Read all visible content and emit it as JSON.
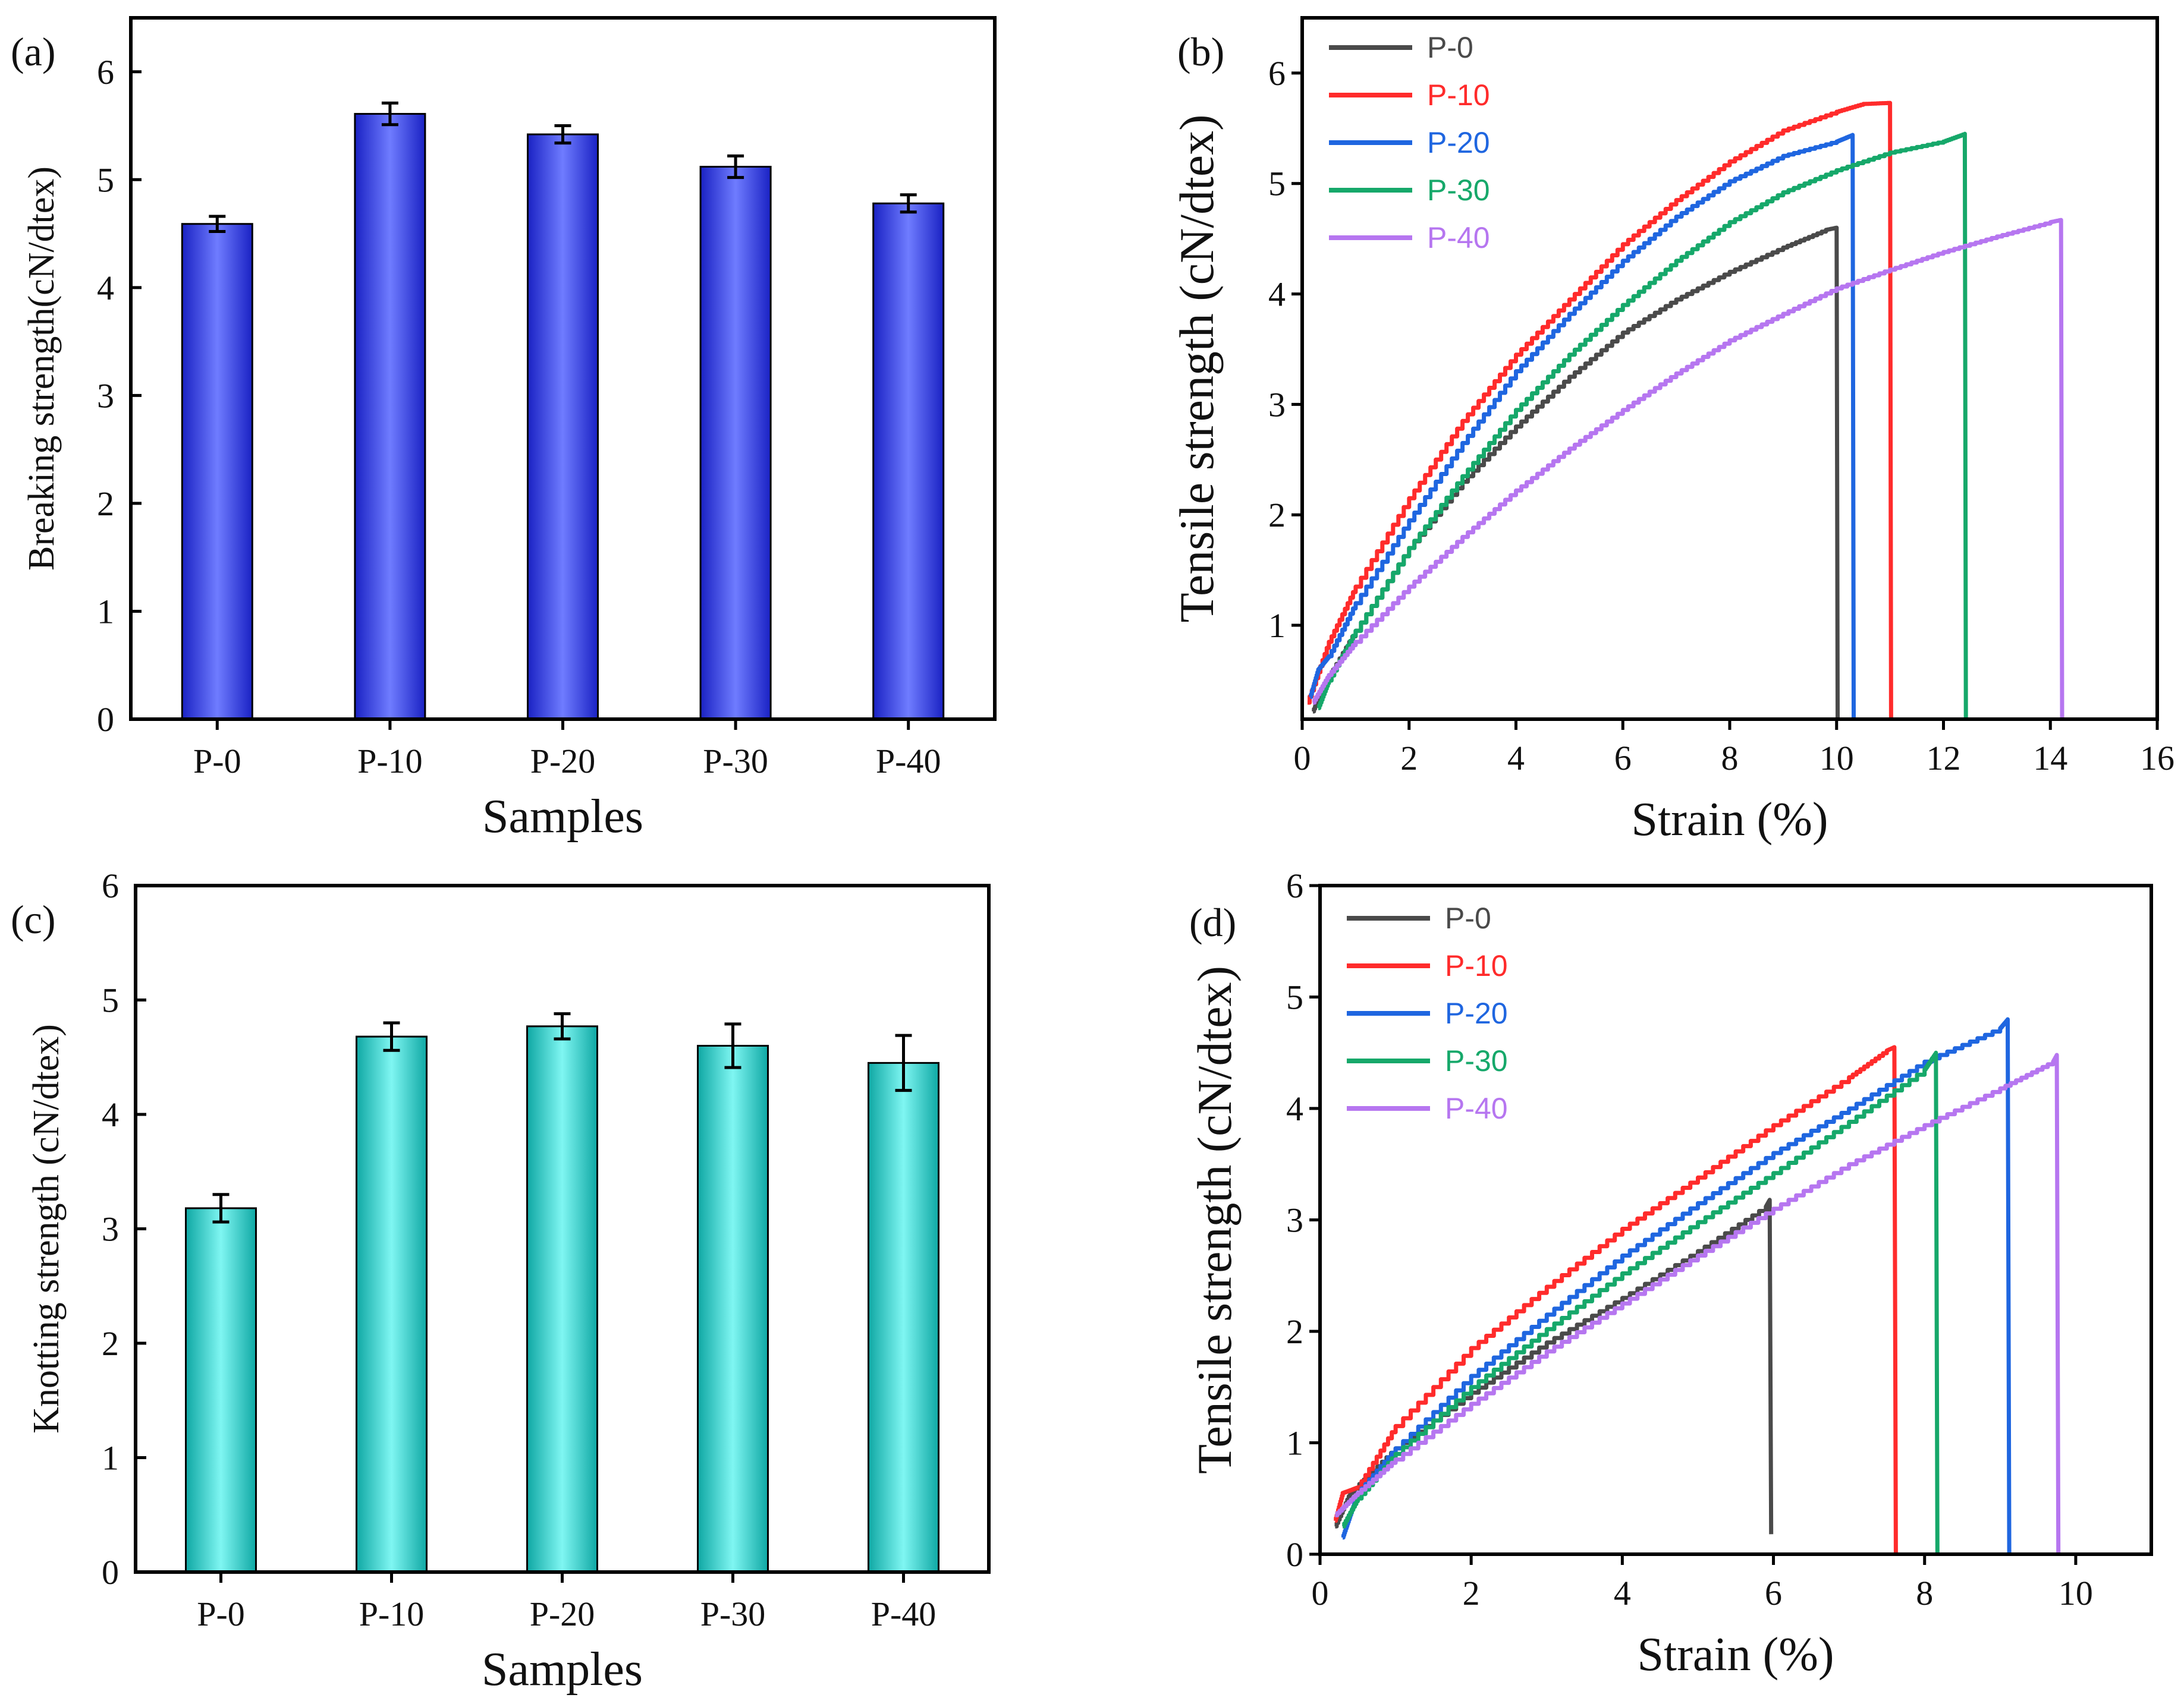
{
  "figure_title": "",
  "colors": {
    "bar_a": "#3f48ff",
    "bar_c": "#19e3df",
    "P-0": "#4a4a4a",
    "P-10": "#ff2b2b",
    "P-20": "#1f66e0",
    "P-30": "#16a86a",
    "P-40": "#b676f0"
  },
  "chart_data": [
    {
      "id": "a",
      "type": "bar",
      "panel_label": "(a)",
      "title": "",
      "xlabel": "Samples",
      "ylabel": "Breaking strength(cN/dtex)",
      "categories": [
        "P-0",
        "P-10",
        "P-20",
        "P-30",
        "P-40"
      ],
      "values": [
        4.59,
        5.61,
        5.42,
        5.12,
        4.78
      ],
      "errors": [
        0.07,
        0.1,
        0.08,
        0.1,
        0.08
      ],
      "ylim": [
        0,
        6.5
      ],
      "yticks": [
        0,
        1,
        2,
        3,
        4,
        5,
        6
      ],
      "grid": false
    },
    {
      "id": "b",
      "type": "line",
      "panel_label": "(b)",
      "title": "",
      "xlabel": "Strain (%)",
      "ylabel": "Tensile strength (cN/dtex)",
      "xlim": [
        0,
        16
      ],
      "ylim": [
        0.15,
        6.5
      ],
      "xticks": [
        0,
        2,
        4,
        6,
        8,
        10,
        12,
        14,
        16
      ],
      "yticks": [
        1,
        2,
        3,
        4,
        5,
        6
      ],
      "legend_position": "top-left",
      "grid": false,
      "series": [
        {
          "name": "P-0",
          "x": [
            0.2,
            0.4,
            1,
            2,
            3,
            4,
            5,
            6,
            7,
            8,
            9,
            9.8,
            10.0,
            10.02
          ],
          "y": [
            0.22,
            0.45,
            0.95,
            1.7,
            2.3,
            2.8,
            3.25,
            3.65,
            3.95,
            4.2,
            4.42,
            4.58,
            4.6,
            0.15
          ]
        },
        {
          "name": "P-10",
          "x": [
            0.1,
            0.5,
            1,
            2,
            3,
            4,
            5,
            6,
            7,
            8,
            9,
            10,
            10.5,
            11.0,
            11.02
          ],
          "y": [
            0.3,
            0.85,
            1.35,
            2.15,
            2.85,
            3.45,
            3.95,
            4.45,
            4.85,
            5.2,
            5.48,
            5.65,
            5.72,
            5.73,
            0.15
          ]
        },
        {
          "name": "P-20",
          "x": [
            0.15,
            0.3,
            0.5,
            1,
            2,
            3,
            4,
            5,
            6,
            7,
            8,
            9,
            10,
            10.3,
            10.32
          ],
          "y": [
            0.35,
            0.6,
            0.72,
            1.2,
            1.95,
            2.65,
            3.3,
            3.82,
            4.3,
            4.7,
            5.02,
            5.25,
            5.38,
            5.44,
            0.15
          ]
        },
        {
          "name": "P-30",
          "x": [
            0.3,
            0.5,
            1,
            2,
            3,
            4,
            5,
            6,
            7,
            8,
            9,
            10,
            11,
            12,
            12.4,
            12.42
          ],
          "y": [
            0.25,
            0.5,
            0.95,
            1.7,
            2.35,
            2.95,
            3.45,
            3.9,
            4.3,
            4.65,
            4.92,
            5.12,
            5.28,
            5.38,
            5.45,
            0.15
          ]
        },
        {
          "name": "P-40",
          "x": [
            0.2,
            0.5,
            1,
            2,
            3,
            4,
            5,
            6,
            7,
            8,
            9,
            10,
            11,
            12,
            13,
            14.0,
            14.2,
            14.22
          ],
          "y": [
            0.3,
            0.55,
            0.85,
            1.35,
            1.8,
            2.22,
            2.6,
            2.95,
            3.28,
            3.58,
            3.82,
            4.05,
            4.22,
            4.38,
            4.52,
            4.65,
            4.67,
            0.15
          ]
        }
      ]
    },
    {
      "id": "c",
      "type": "bar",
      "panel_label": "(c)",
      "title": "",
      "xlabel": "Samples",
      "ylabel": "Knotting strength (cN/dtex)",
      "categories": [
        "P-0",
        "P-10",
        "P-20",
        "P-30",
        "P-40"
      ],
      "values": [
        3.18,
        4.68,
        4.77,
        4.6,
        4.45
      ],
      "errors": [
        0.12,
        0.12,
        0.11,
        0.19,
        0.24
      ],
      "ylim": [
        0,
        6
      ],
      "yticks": [
        0,
        1,
        2,
        3,
        4,
        5,
        6
      ],
      "grid": false
    },
    {
      "id": "d",
      "type": "line",
      "panel_label": "(d)",
      "title": "",
      "xlabel": "Strain (%)",
      "ylabel": "Tensile strength (cN/dtex)",
      "xlim": [
        0,
        11
      ],
      "ylim": [
        0,
        6
      ],
      "xticks": [
        0,
        2,
        4,
        6,
        8,
        10
      ],
      "yticks": [
        0,
        1,
        2,
        3,
        4,
        5,
        6
      ],
      "legend_position": "top-left",
      "grid": false,
      "series": [
        {
          "name": "P-0",
          "x": [
            0.2,
            0.4,
            1,
            2,
            3,
            4,
            5,
            5.9,
            5.95,
            5.97
          ],
          "y": [
            0.25,
            0.55,
            0.95,
            1.45,
            1.9,
            2.3,
            2.72,
            3.12,
            3.18,
            0.18
          ]
        },
        {
          "name": "P-10",
          "x": [
            0.2,
            0.3,
            0.5,
            1,
            2,
            3,
            4,
            5,
            6,
            7,
            7.5,
            7.6,
            7.62
          ],
          "y": [
            0.3,
            0.55,
            0.6,
            1.15,
            1.85,
            2.4,
            2.92,
            3.38,
            3.85,
            4.28,
            4.52,
            4.55,
            0.0
          ]
        },
        {
          "name": "P-20",
          "x": [
            0.3,
            0.4,
            0.5,
            1,
            2,
            3,
            4,
            5,
            6,
            7,
            8,
            9,
            9.1,
            9.12
          ],
          "y": [
            0.15,
            0.35,
            0.55,
            0.95,
            1.6,
            2.15,
            2.68,
            3.15,
            3.6,
            4.0,
            4.42,
            4.72,
            4.8,
            0.0
          ]
        },
        {
          "name": "P-30",
          "x": [
            0.3,
            0.5,
            1,
            2,
            3,
            4,
            5,
            6,
            7,
            8,
            8.15,
            8.17
          ],
          "y": [
            0.25,
            0.5,
            0.9,
            1.5,
            2.02,
            2.52,
            2.98,
            3.42,
            3.88,
            4.35,
            4.5,
            0.0
          ]
        },
        {
          "name": "P-40",
          "x": [
            0.2,
            0.5,
            1,
            2,
            3,
            4,
            5,
            6,
            7,
            8,
            9,
            9.7,
            9.75,
            9.77
          ],
          "y": [
            0.35,
            0.55,
            0.85,
            1.35,
            1.82,
            2.25,
            2.68,
            3.1,
            3.5,
            3.85,
            4.18,
            4.42,
            4.48,
            0.0
          ]
        }
      ]
    }
  ]
}
